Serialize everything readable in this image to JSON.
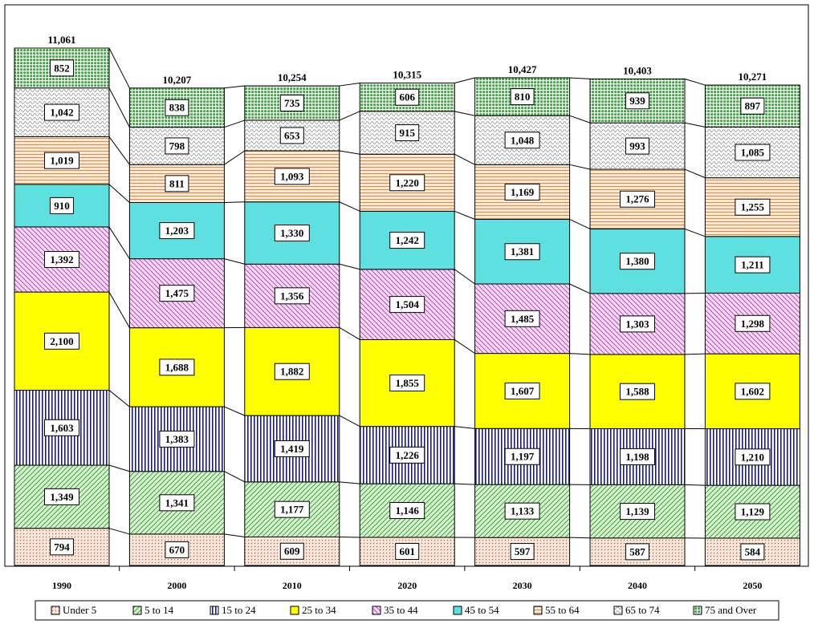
{
  "chart_data": {
    "type": "bar",
    "stacked": true,
    "categories": [
      "1990",
      "2000",
      "2010",
      "2020",
      "2030",
      "2040",
      "2050"
    ],
    "series": [
      {
        "name": "Under 5",
        "values": [
          794,
          670,
          609,
          601,
          597,
          587,
          584
        ],
        "labels": [
          "794",
          "670",
          "609",
          "601",
          "597",
          "587",
          "584"
        ],
        "color": "#fde9d9",
        "pattern": "dots"
      },
      {
        "name": "5 to 14",
        "values": [
          1349,
          1341,
          1177,
          1146,
          1133,
          1139,
          1129
        ],
        "labels": [
          "1,349",
          "1,341",
          "1,177",
          "1,146",
          "1,133",
          "1,139",
          "1,129"
        ],
        "color": "#d8f0d0",
        "pattern": "diag"
      },
      {
        "name": "15 to 24",
        "values": [
          1603,
          1383,
          1419,
          1226,
          1197,
          1198,
          1210
        ],
        "labels": [
          "1,603",
          "1,383",
          "1,419",
          "1,226",
          "1,197",
          "1,198",
          "1,210"
        ],
        "color": "#ffffff",
        "pattern": "vlines"
      },
      {
        "name": "25 to 34",
        "values": [
          2100,
          1688,
          1882,
          1855,
          1607,
          1588,
          1602
        ],
        "labels": [
          "2,100",
          "1,688",
          "1,882",
          "1,855",
          "1,607",
          "1,588",
          "1,602"
        ],
        "color": "#ffff00",
        "pattern": "solid"
      },
      {
        "name": "35 to 44",
        "values": [
          1392,
          1475,
          1356,
          1504,
          1485,
          1303,
          1298
        ],
        "labels": [
          "1,392",
          "1,475",
          "1,356",
          "1,504",
          "1,485",
          "1,303",
          "1,298"
        ],
        "color": "#f5d8f5",
        "pattern": "diag2"
      },
      {
        "name": "45 to 54",
        "values": [
          910,
          1203,
          1330,
          1242,
          1381,
          1380,
          1211
        ],
        "labels": [
          "910",
          "1,203",
          "1,330",
          "1,242",
          "1,381",
          "1,380",
          "1,211"
        ],
        "color": "#5fe0e0",
        "pattern": "solid"
      },
      {
        "name": "55 to 64",
        "values": [
          1019,
          811,
          1093,
          1220,
          1169,
          1276,
          1255
        ],
        "labels": [
          "1,019",
          "811",
          "1,093",
          "1,220",
          "1,169",
          "1,276",
          "1,255"
        ],
        "color": "#fde9d9",
        "pattern": "hlines"
      },
      {
        "name": "65 to 74",
        "values": [
          1042,
          798,
          653,
          915,
          1048,
          993,
          1085
        ],
        "labels": [
          "1,042",
          "798",
          "653",
          "915",
          "1,048",
          "993",
          "1,085"
        ],
        "color": "#ffffff",
        "pattern": "waves"
      },
      {
        "name": "75 and Over",
        "values": [
          852,
          838,
          735,
          606,
          810,
          939,
          897
        ],
        "labels": [
          "852",
          "838",
          "735",
          "606",
          "810",
          "939",
          "897"
        ],
        "color": "#33aa33",
        "pattern": "grid"
      }
    ],
    "totals": [
      11061,
      10207,
      10254,
      10315,
      10427,
      10403,
      10271
    ],
    "total_labels": [
      "11,061",
      "10,207",
      "10,254",
      "10,315",
      "10,427",
      "10,403",
      "10,271"
    ],
    "title": "",
    "xlabel": "",
    "ylabel": "",
    "ylim": [
      0,
      11500
    ],
    "grid": false,
    "legend": "bottom"
  }
}
